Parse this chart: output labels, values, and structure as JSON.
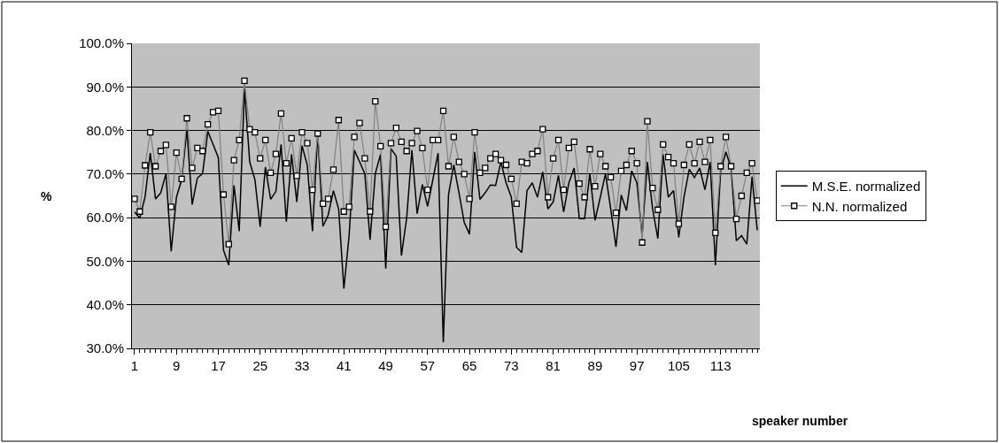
{
  "chart_data": {
    "type": "line",
    "xlabel": "speaker number",
    "ylabel": "%",
    "categories": [
      "1",
      null,
      null,
      null,
      null,
      null,
      null,
      null,
      "9",
      null,
      null,
      null,
      null,
      null,
      null,
      null,
      "17",
      null,
      null,
      null,
      null,
      null,
      null,
      null,
      "25",
      null,
      null,
      null,
      null,
      null,
      null,
      null,
      "33",
      null,
      null,
      null,
      null,
      null,
      null,
      null,
      "41",
      null,
      null,
      null,
      null,
      null,
      null,
      null,
      "49",
      null,
      null,
      null,
      null,
      null,
      null,
      null,
      "57",
      null,
      null,
      null,
      null,
      null,
      null,
      null,
      "65",
      null,
      null,
      null,
      null,
      null,
      null,
      null,
      "73",
      null,
      null,
      null,
      null,
      null,
      null,
      null,
      "81",
      null,
      null,
      null,
      null,
      null,
      null,
      null,
      "89",
      null,
      null,
      null,
      null,
      null,
      null,
      null,
      "97",
      null,
      null,
      null,
      null,
      null,
      null,
      null,
      "105",
      null,
      null,
      null,
      null,
      null,
      null,
      null,
      "113",
      null,
      null,
      null,
      null,
      null,
      null,
      null
    ],
    "series": [
      {
        "name": "M.S.E. normalized",
        "color": "#000000",
        "marker": "none",
        "values": [
          61.3,
          59.9,
          64.7,
          74.8,
          64.3,
          65.7,
          70.1,
          52.3,
          64.7,
          68.7,
          80.2,
          63.0,
          69.1,
          70.1,
          79.8,
          76.8,
          73.8,
          52.5,
          49.1,
          67.4,
          56.9,
          89.7,
          72.8,
          68.7,
          57.9,
          71.6,
          64.2,
          66.0,
          76.8,
          59.1,
          74.5,
          63.6,
          76.5,
          72.1,
          56.9,
          79.2,
          58.0,
          60.6,
          66.2,
          62.0,
          43.7,
          55.9,
          75.5,
          72.8,
          70.1,
          54.9,
          70.1,
          74.5,
          48.3,
          75.8,
          74.1,
          51.3,
          59.9,
          75.5,
          60.9,
          67.6,
          62.6,
          68.7,
          74.8,
          31.4,
          65.3,
          72.1,
          65.7,
          58.9,
          56.2,
          75.1,
          64.2,
          65.7,
          67.5,
          67.4,
          72.8,
          68.0,
          64.7,
          53.2,
          52.0,
          66.2,
          68.0,
          64.7,
          70.5,
          62.0,
          63.6,
          69.7,
          61.3,
          68.0,
          71.4,
          59.8,
          59.8,
          70.1,
          59.4,
          64.7,
          70.1,
          62.0,
          53.3,
          65.2,
          61.6,
          70.7,
          68.0,
          55.9,
          72.8,
          62.0,
          55.2,
          74.5,
          64.7,
          66.2,
          55.5,
          64.7,
          71.1,
          69.2,
          71.4,
          66.4,
          72.8,
          49.1,
          70.7,
          75.1,
          71.4,
          54.7,
          55.9,
          53.9,
          69.4,
          57.1
        ]
      },
      {
        "name": "N.N. normalized",
        "color": "#808080",
        "marker": "square",
        "values": [
          64.3,
          61.4,
          72.0,
          79.6,
          71.8,
          75.3,
          76.7,
          62.5,
          74.9,
          68.9,
          82.8,
          71.4,
          76.0,
          75.3,
          81.4,
          84.2,
          84.5,
          65.3,
          53.9,
          73.2,
          77.8,
          91.4,
          80.3,
          79.6,
          73.6,
          77.8,
          70.3,
          74.6,
          83.9,
          72.5,
          78.2,
          69.6,
          79.6,
          77.1,
          66.4,
          79.3,
          63.2,
          64.3,
          71.0,
          82.4,
          61.4,
          62.5,
          78.5,
          81.7,
          73.6,
          61.4,
          86.7,
          76.4,
          57.9,
          77.1,
          80.6,
          77.4,
          75.3,
          77.1,
          79.9,
          76.0,
          66.4,
          77.8,
          77.8,
          84.5,
          71.8,
          78.5,
          72.8,
          70.0,
          64.3,
          79.6,
          70.3,
          71.4,
          73.6,
          74.6,
          73.2,
          72.1,
          68.9,
          63.2,
          72.8,
          72.5,
          74.6,
          75.3,
          80.3,
          64.7,
          73.6,
          77.8,
          66.4,
          76.0,
          77.4,
          67.8,
          64.7,
          75.7,
          67.2,
          74.6,
          71.8,
          69.3,
          61.1,
          70.7,
          72.1,
          75.3,
          72.5,
          54.3,
          82.1,
          66.8,
          61.8,
          76.8,
          73.9,
          72.5,
          58.6,
          72.1,
          76.8,
          72.5,
          77.4,
          72.8,
          77.8,
          56.5,
          71.8,
          78.5,
          71.8,
          59.7,
          65.0,
          70.3,
          72.5,
          63.9
        ]
      }
    ],
    "ylim": [
      30,
      100
    ],
    "yticks": [
      {
        "value": 30,
        "label": "30.0%"
      },
      {
        "value": 40,
        "label": "40.0%"
      },
      {
        "value": 50,
        "label": "50.0%"
      },
      {
        "value": 60,
        "label": "60.0%"
      },
      {
        "value": 70,
        "label": "70.0%"
      },
      {
        "value": 80,
        "label": "80.0%"
      },
      {
        "value": 90,
        "label": "90.0%"
      },
      {
        "value": 100,
        "label": "100.0%"
      }
    ],
    "grid": "y",
    "legend": "right",
    "line_style": "solid"
  }
}
